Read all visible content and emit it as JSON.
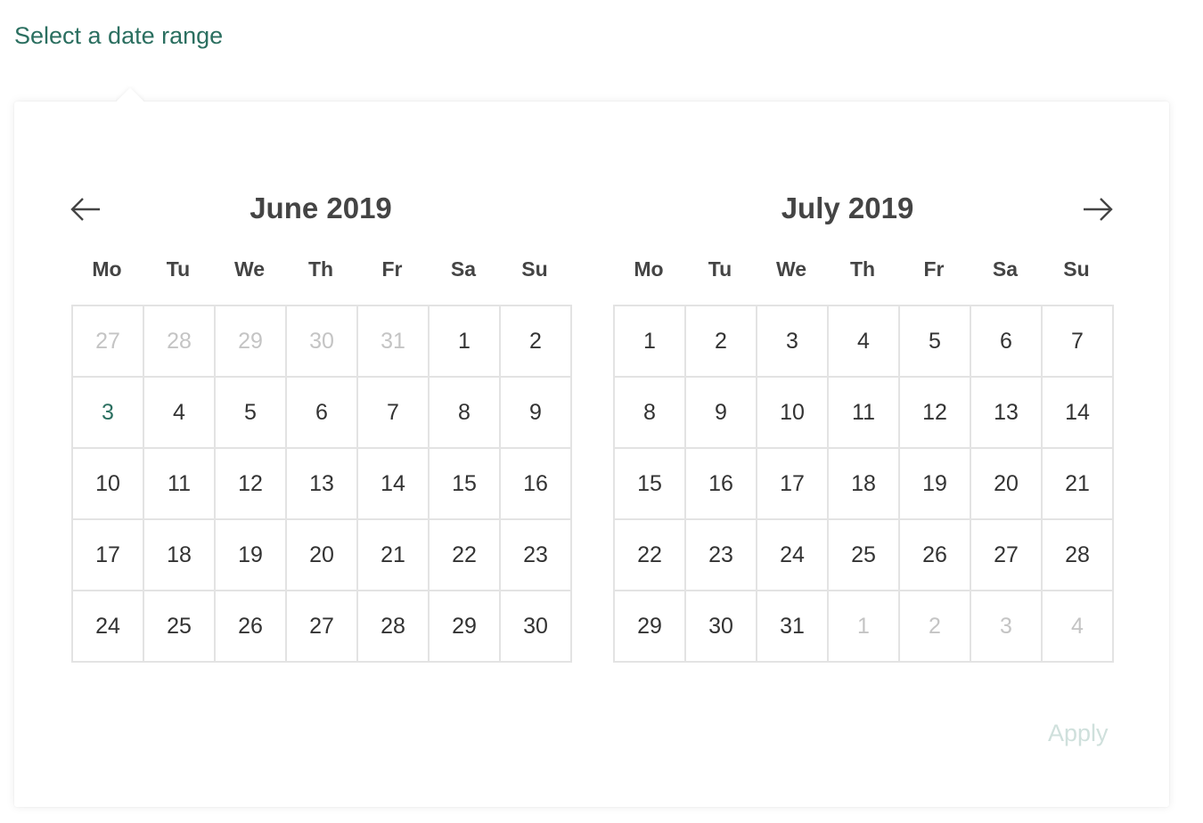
{
  "trigger": {
    "label": "Select a date range"
  },
  "navigation": {
    "prev_icon": "arrow-left-icon",
    "next_icon": "arrow-right-icon"
  },
  "weekdays": [
    "Mo",
    "Tu",
    "We",
    "Th",
    "Fr",
    "Sa",
    "Su"
  ],
  "months": [
    {
      "title": "June 2019",
      "days": [
        {
          "d": "27",
          "muted": true
        },
        {
          "d": "28",
          "muted": true
        },
        {
          "d": "29",
          "muted": true
        },
        {
          "d": "30",
          "muted": true
        },
        {
          "d": "31",
          "muted": true
        },
        {
          "d": "1"
        },
        {
          "d": "2"
        },
        {
          "d": "3",
          "today": true
        },
        {
          "d": "4"
        },
        {
          "d": "5"
        },
        {
          "d": "6"
        },
        {
          "d": "7"
        },
        {
          "d": "8"
        },
        {
          "d": "9"
        },
        {
          "d": "10"
        },
        {
          "d": "11"
        },
        {
          "d": "12"
        },
        {
          "d": "13"
        },
        {
          "d": "14"
        },
        {
          "d": "15"
        },
        {
          "d": "16"
        },
        {
          "d": "17"
        },
        {
          "d": "18"
        },
        {
          "d": "19"
        },
        {
          "d": "20"
        },
        {
          "d": "21"
        },
        {
          "d": "22"
        },
        {
          "d": "23"
        },
        {
          "d": "24"
        },
        {
          "d": "25"
        },
        {
          "d": "26"
        },
        {
          "d": "27"
        },
        {
          "d": "28"
        },
        {
          "d": "29"
        },
        {
          "d": "30"
        }
      ]
    },
    {
      "title": "July 2019",
      "days": [
        {
          "d": "1"
        },
        {
          "d": "2"
        },
        {
          "d": "3"
        },
        {
          "d": "4"
        },
        {
          "d": "5"
        },
        {
          "d": "6"
        },
        {
          "d": "7"
        },
        {
          "d": "8"
        },
        {
          "d": "9"
        },
        {
          "d": "10"
        },
        {
          "d": "11"
        },
        {
          "d": "12"
        },
        {
          "d": "13"
        },
        {
          "d": "14"
        },
        {
          "d": "15"
        },
        {
          "d": "16"
        },
        {
          "d": "17"
        },
        {
          "d": "18"
        },
        {
          "d": "19"
        },
        {
          "d": "20"
        },
        {
          "d": "21"
        },
        {
          "d": "22"
        },
        {
          "d": "23"
        },
        {
          "d": "24"
        },
        {
          "d": "25"
        },
        {
          "d": "26"
        },
        {
          "d": "27"
        },
        {
          "d": "28"
        },
        {
          "d": "29"
        },
        {
          "d": "30"
        },
        {
          "d": "31"
        },
        {
          "d": "1",
          "muted": true
        },
        {
          "d": "2",
          "muted": true
        },
        {
          "d": "3",
          "muted": true
        },
        {
          "d": "4",
          "muted": true
        }
      ]
    }
  ],
  "footer": {
    "apply_label": "Apply"
  },
  "colors": {
    "accent": "#2b6f60",
    "muted": "#c4c4c4",
    "apply_disabled": "#cfe0dc",
    "grid_line": "#e3e3e3"
  }
}
